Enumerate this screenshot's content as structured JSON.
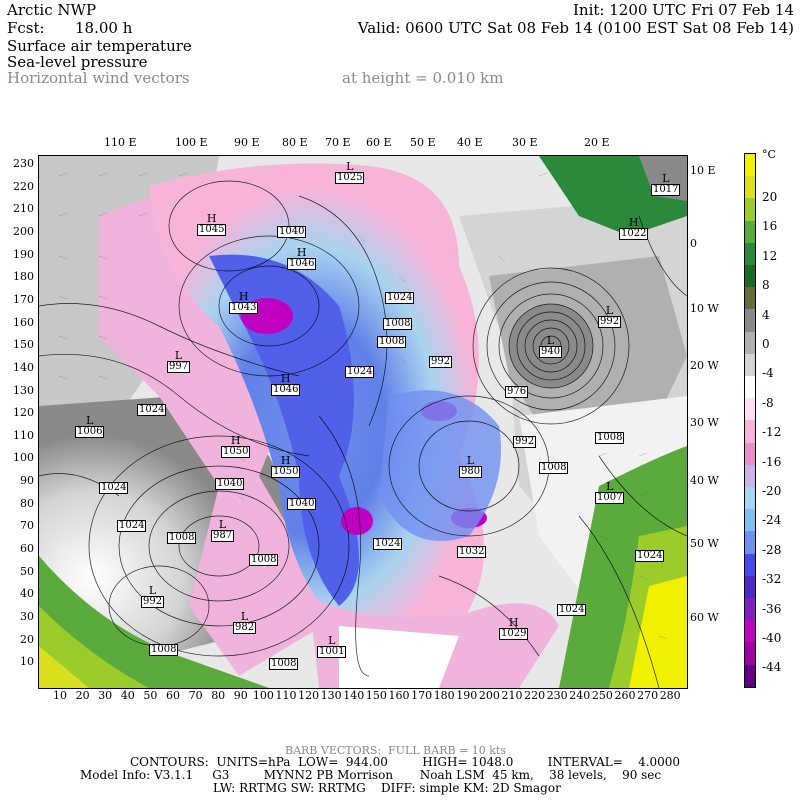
{
  "header": {
    "model": "Arctic NWP",
    "fcst_label": "Fcst:",
    "fcst_value": "18.00 h",
    "init": "Init: 1200 UTC Fri 07 Feb 14",
    "valid": "Valid: 0600 UTC Sat 08 Feb 14 (0100 EST Sat 08 Feb 14)",
    "field1": "Surface air temperature",
    "field2": "Sea-level pressure",
    "field3": "Horizontal wind vectors",
    "height": "at height = 0.010 km"
  },
  "axes": {
    "top_lon": [
      "110 E",
      "100 E",
      "90 E",
      "80 E",
      "70 E",
      "60 E",
      "50 E",
      "40 E",
      "30 E",
      "20 E"
    ],
    "right_lat": [
      "10 E",
      "0",
      "10 W",
      "20 W",
      "30 W",
      "40 W",
      "50 W",
      "60 W"
    ],
    "y_ticks": [
      "230",
      "220",
      "210",
      "200",
      "190",
      "180",
      "170",
      "160",
      "150",
      "140",
      "130",
      "120",
      "110",
      "100",
      "90",
      "80",
      "70",
      "60",
      "50",
      "40",
      "30",
      "20",
      "10"
    ],
    "x_ticks": [
      "10",
      "20",
      "30",
      "40",
      "50",
      "60",
      "70",
      "80",
      "90",
      "100",
      "110",
      "120",
      "130",
      "140",
      "150",
      "160",
      "170",
      "180",
      "190",
      "200",
      "210",
      "220",
      "230",
      "240",
      "250",
      "260",
      "270",
      "280"
    ]
  },
  "colorbar": {
    "unit": "°C",
    "labels": [
      "20",
      "16",
      "12",
      "8",
      "4",
      "0",
      "-4",
      "-8",
      "-12",
      "-16",
      "-20",
      "-24",
      "-28",
      "-32",
      "-36",
      "-40",
      "-44"
    ],
    "colors": [
      "#f0f000",
      "#d8e020",
      "#9ccc2c",
      "#5aaa3c",
      "#2a8a3a",
      "#1a6a2a",
      "#6a6a3a",
      "#8a8a8a",
      "#b0b0b0",
      "#d4d4d4",
      "#ffffff",
      "#ffe0f0",
      "#f8b4d8",
      "#e890c8",
      "#c8b4e8",
      "#a8d4f0",
      "#80c0f0",
      "#7090f0",
      "#4848e8",
      "#5028c8",
      "#8020c0",
      "#c000c0",
      "#a000a0",
      "#600080"
    ]
  },
  "pressure_centers": [
    {
      "type": "L",
      "value": "1025"
    },
    {
      "type": "L",
      "value": "1017"
    },
    {
      "type": "H",
      "value": "1045"
    },
    {
      "type": "",
      "value": "1040"
    },
    {
      "type": "H",
      "value": "1046"
    },
    {
      "type": "H",
      "value": "1022"
    },
    {
      "type": "H",
      "value": "1043"
    },
    {
      "type": "",
      "value": "1024"
    },
    {
      "type": "",
      "value": "1008"
    },
    {
      "type": "",
      "value": "1008"
    },
    {
      "type": "L",
      "value": "992"
    },
    {
      "type": "",
      "value": "992"
    },
    {
      "type": "L",
      "value": "940"
    },
    {
      "type": "L",
      "value": "997"
    },
    {
      "type": "H",
      "value": "1046"
    },
    {
      "type": "",
      "value": "1024"
    },
    {
      "type": "",
      "value": "976"
    },
    {
      "type": "",
      "value": "1024"
    },
    {
      "type": "L",
      "value": "1006"
    },
    {
      "type": "",
      "value": "992"
    },
    {
      "type": "",
      "value": "1008"
    },
    {
      "type": "H",
      "value": "1050"
    },
    {
      "type": "H",
      "value": "1050"
    },
    {
      "type": "L",
      "value": "980"
    },
    {
      "type": "",
      "value": "1008"
    },
    {
      "type": "",
      "value": "1040"
    },
    {
      "type": "",
      "value": "1024"
    },
    {
      "type": "L",
      "value": "1007"
    },
    {
      "type": "",
      "value": "1040"
    },
    {
      "type": "",
      "value": "1024"
    },
    {
      "type": "",
      "value": "1008"
    },
    {
      "type": "L",
      "value": "987"
    },
    {
      "type": "",
      "value": "1008"
    },
    {
      "type": "",
      "value": "1024"
    },
    {
      "type": "",
      "value": "1032"
    },
    {
      "type": "",
      "value": "1024"
    },
    {
      "type": "L",
      "value": "992"
    },
    {
      "type": "L",
      "value": "982"
    },
    {
      "type": "",
      "value": "1024"
    },
    {
      "type": "H",
      "value": "1029"
    },
    {
      "type": "",
      "value": "1008"
    },
    {
      "type": "L",
      "value": "1001"
    },
    {
      "type": "",
      "value": "1008"
    }
  ],
  "footer": {
    "barb": "BARB VECTORS:  FULL BARB = 10 kts",
    "contours": "CONTOURS:  UNITS=hPa  LOW=  944.00         HIGH= 1048.0         INTERVAL=    4.0000",
    "model_info": "Model Info: V3.1.1     G3         MYNN2 PB Morrison       Noah LSM  45 km,    38 levels,    90 sec",
    "physics": "LW: RRTMG SW: RRTMG    DIFF: simple KM: 2D Smagor"
  }
}
